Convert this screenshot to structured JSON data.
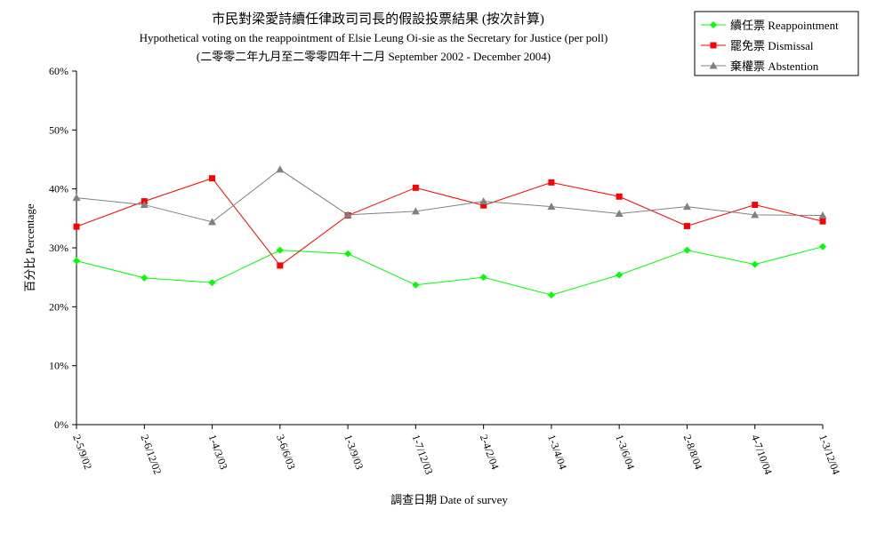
{
  "chart_data": {
    "type": "line",
    "title": "市民對梁愛詩續任律政司司長的假設投票結果 (按次計算)",
    "subtitle": "Hypothetical voting on the reappointment of  Elsie Leung Oi-sie as the Secretary for Justice (per poll)",
    "subtitle2": "(二零零二年九月至二零零四年十二月 September 2002 - December 2004)",
    "xlabel": "調查日期 Date of survey",
    "ylabel": "百分比 Percentage",
    "categories": [
      "2-5/9/02",
      "2-6/12/02",
      "1-4/3/03",
      "3-6/6/03",
      "1-3/9/03",
      "1-7/12/03",
      "2-4/2/04",
      "1-3/4/04",
      "1-3/6/04",
      "2-8/8/04",
      "4-7/10/04",
      "1-3/12/04"
    ],
    "ylim": [
      0,
      60
    ],
    "yticks": [
      "0%",
      "10%",
      "20%",
      "30%",
      "40%",
      "50%",
      "60%"
    ],
    "legend_position": "top-right",
    "grid": false,
    "series": [
      {
        "name": "續任票 Reappointment",
        "color": "#00ff00",
        "marker": "diamond",
        "values": [
          27.8,
          24.9,
          24.1,
          29.6,
          29.0,
          23.7,
          25.0,
          22.0,
          25.4,
          29.6,
          27.2,
          30.2
        ]
      },
      {
        "name": "罷免票 Dismissal",
        "color": "#ff0000",
        "marker": "square",
        "values": [
          33.6,
          37.9,
          41.8,
          27.0,
          35.5,
          40.2,
          37.2,
          41.1,
          38.7,
          33.7,
          37.3,
          34.5
        ]
      },
      {
        "name": "棄權票 Abstention",
        "color": "#808080",
        "marker": "triangle",
        "values": [
          38.5,
          37.3,
          34.4,
          43.3,
          35.6,
          36.2,
          37.9,
          37.0,
          35.8,
          37.0,
          35.6,
          35.5
        ]
      }
    ]
  }
}
